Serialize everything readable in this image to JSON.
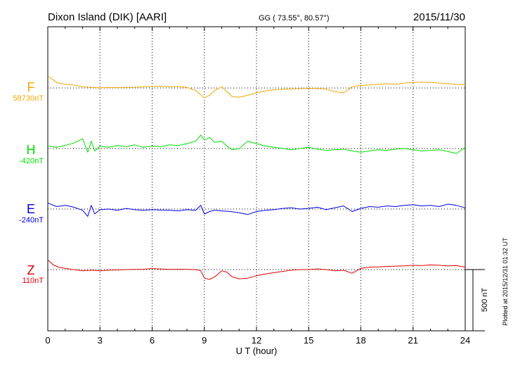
{
  "header": {
    "station": "Dixon Island (DIK)  [AARI]",
    "coords": "GG ( 73.55°,  80.57°)",
    "date": "2015/11/30"
  },
  "footer": {
    "plotted": "Plotted at 2015/12/31 01:32 UT"
  },
  "colors": {
    "F": "#f0a800",
    "H": "#00e000",
    "E": "#0000e0",
    "Z": "#e00000"
  },
  "chart_data": {
    "type": "line",
    "xlabel": "U T (hour)",
    "xlim": [
      0,
      24
    ],
    "xticks": [
      "0",
      "3",
      "6",
      "9",
      "12",
      "15",
      "18",
      "21",
      "24"
    ],
    "scale_bar": {
      "value": 500,
      "label": "500 nT"
    },
    "series": [
      {
        "name": "F",
        "baseline": "58730nT",
        "x": [
          0,
          0.5,
          1,
          1.5,
          2,
          2.5,
          3,
          3.5,
          4,
          4.5,
          5,
          5.5,
          6,
          6.5,
          7,
          7.5,
          8,
          8.5,
          9,
          9.3,
          9.6,
          10,
          10.3,
          10.6,
          11,
          11.5,
          12,
          12.5,
          13,
          13.5,
          14,
          14.5,
          15,
          15.5,
          16,
          16.5,
          17,
          17.5,
          18,
          18.5,
          19,
          19.5,
          20,
          20.5,
          21,
          21.5,
          22,
          22.5,
          23,
          23.5,
          24
        ],
        "y": [
          100,
          45,
          30,
          25,
          10,
          5,
          2,
          4,
          3,
          5,
          6,
          10,
          12,
          15,
          10,
          12,
          5,
          -20,
          -80,
          -60,
          -20,
          10,
          -30,
          -70,
          -75,
          -60,
          -40,
          -25,
          -15,
          -10,
          -8,
          -5,
          -3,
          -5,
          -8,
          -30,
          -40,
          10,
          20,
          25,
          30,
          35,
          30,
          40,
          45,
          48,
          45,
          40,
          35,
          30,
          25
        ]
      },
      {
        "name": "H",
        "baseline": "-420nT",
        "x": [
          0,
          0.5,
          1,
          1.5,
          2,
          2.3,
          2.5,
          2.7,
          3,
          3.5,
          4,
          4.5,
          5,
          5.5,
          6,
          6.5,
          7,
          7.5,
          8,
          8.5,
          8.8,
          9,
          9.3,
          9.6,
          10,
          10.3,
          10.6,
          11,
          11.5,
          12,
          12.5,
          13,
          13.5,
          14,
          14.5,
          15,
          15.5,
          16,
          16.5,
          17,
          17.5,
          18,
          18.5,
          19,
          19.5,
          20,
          20.5,
          21,
          21.5,
          22,
          22.5,
          23,
          23.5,
          24
        ],
        "y": [
          20,
          10,
          25,
          45,
          80,
          -30,
          60,
          -20,
          20,
          10,
          25,
          15,
          30,
          10,
          20,
          15,
          30,
          25,
          40,
          60,
          110,
          70,
          90,
          50,
          60,
          20,
          -10,
          0,
          60,
          40,
          20,
          10,
          0,
          -10,
          0,
          10,
          -5,
          -15,
          -10,
          -5,
          -20,
          -30,
          -20,
          -10,
          -15,
          -5,
          0,
          -10,
          -20,
          -15,
          -10,
          -25,
          -40,
          10
        ]
      },
      {
        "name": "E",
        "baseline": "-240nT",
        "x": [
          0,
          0.5,
          1,
          1.5,
          2,
          2.3,
          2.5,
          2.7,
          3,
          3.5,
          4,
          4.5,
          5,
          5.5,
          6,
          6.5,
          7,
          7.5,
          8,
          8.5,
          8.8,
          9,
          9.3,
          9.6,
          10,
          10.5,
          11,
          11.5,
          12,
          12.5,
          13,
          13.5,
          14,
          14.5,
          15,
          15.5,
          16,
          16.5,
          17,
          17.5,
          18,
          18.5,
          19,
          19.5,
          20,
          20.5,
          21,
          21.5,
          22,
          22.5,
          23,
          23.5,
          24
        ],
        "y": [
          50,
          20,
          30,
          15,
          -10,
          -60,
          30,
          -40,
          -5,
          0,
          -10,
          5,
          -5,
          -10,
          -5,
          -8,
          -10,
          -15,
          -5,
          -10,
          30,
          -40,
          -20,
          -10,
          -15,
          -20,
          -30,
          -45,
          -20,
          -10,
          -5,
          5,
          10,
          0,
          5,
          15,
          -5,
          10,
          25,
          -20,
          5,
          20,
          15,
          25,
          20,
          30,
          35,
          25,
          30,
          20,
          40,
          30,
          10
        ]
      },
      {
        "name": "Z",
        "baseline": "110nT",
        "x": [
          0,
          0.3,
          0.6,
          1,
          1.5,
          2,
          2.5,
          3,
          3.5,
          4,
          4.5,
          5,
          5.5,
          6,
          6.5,
          7,
          7.5,
          8,
          8.5,
          8.8,
          9,
          9.3,
          9.6,
          10,
          10.3,
          10.6,
          11,
          11.5,
          12,
          12.5,
          13,
          13.5,
          14,
          14.5,
          15,
          15.5,
          16,
          16.5,
          17,
          17.5,
          18,
          18.5,
          19,
          19.5,
          20,
          20.5,
          21,
          21.5,
          22,
          22.5,
          23,
          23.5,
          24
        ],
        "y": [
          80,
          40,
          20,
          10,
          0,
          -10,
          -5,
          -10,
          -5,
          -3,
          0,
          2,
          3,
          8,
          5,
          2,
          3,
          2,
          0,
          -10,
          -70,
          -80,
          -60,
          -10,
          -20,
          -60,
          -75,
          -70,
          -50,
          -35,
          -25,
          -15,
          -5,
          0,
          0,
          5,
          0,
          -10,
          -5,
          -30,
          10,
          20,
          22,
          25,
          28,
          30,
          35,
          32,
          38,
          35,
          30,
          32,
          20
        ]
      }
    ]
  }
}
